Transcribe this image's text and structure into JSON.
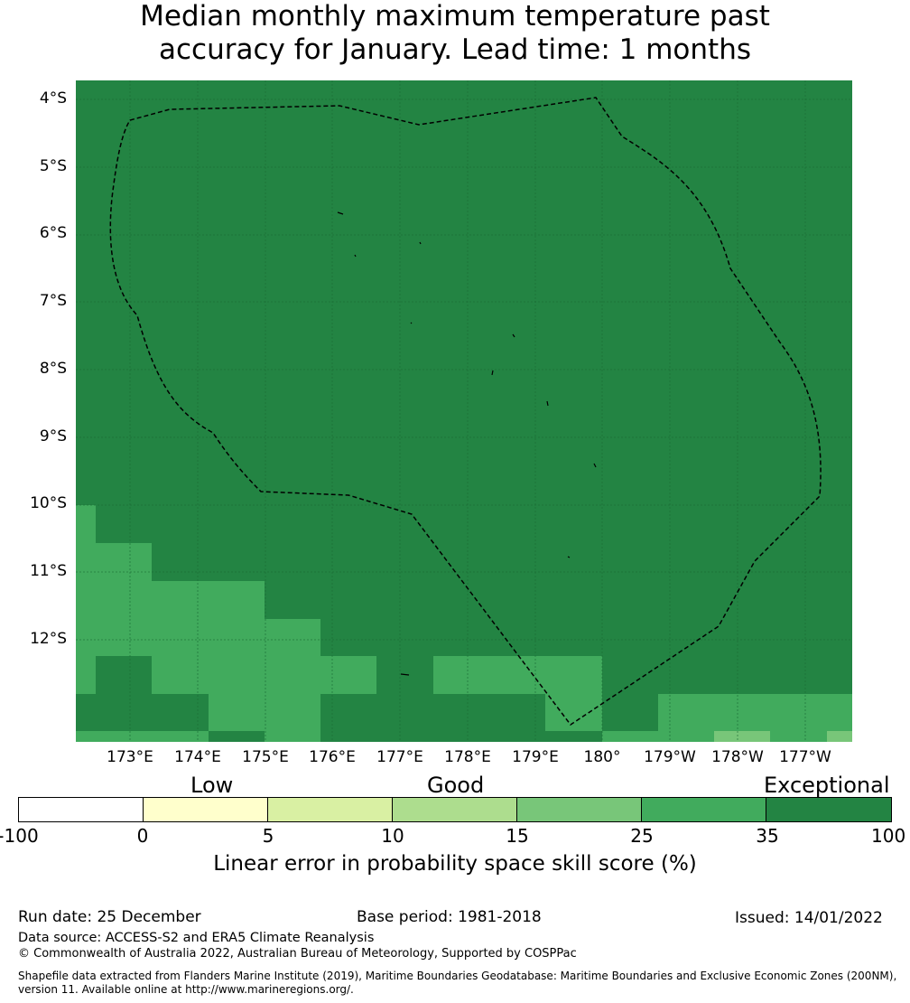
{
  "title": {
    "line1": "Median monthly maximum temperature past",
    "line2": "accuracy for January. Lead time: 1 months"
  },
  "map": {
    "lat_labels": [
      "4°S",
      "5°S",
      "6°S",
      "7°S",
      "8°S",
      "9°S",
      "10°S",
      "11°S",
      "12°S"
    ],
    "lon_labels": [
      "173°E",
      "174°E",
      "175°E",
      "176°E",
      "177°E",
      "178°E",
      "179°E",
      "180°",
      "179°W",
      "178°W",
      "177°W"
    ],
    "colors": {
      "exceptional": "#238443",
      "good_25_35": "#41ab5d",
      "good_15_25": "#78c679",
      "eez_line": "#000000"
    },
    "boundary": "dashed EEZ outline",
    "grid": true
  },
  "legend": {
    "categories": [
      "Low",
      "Good",
      "Exceptional"
    ],
    "ticks": [
      "-100",
      "0",
      "5",
      "10",
      "15",
      "25",
      "35",
      "100"
    ],
    "colors": [
      "#ffffff",
      "#ffffcc",
      "#d9f0a3",
      "#addd8e",
      "#78c679",
      "#41ab5d",
      "#238443"
    ],
    "label": "Linear error in probability space skill score (%)"
  },
  "footer": {
    "run_date": "Run date: 25 December",
    "base_period": "Base period: 1981-2018",
    "issued": "Issued: 14/01/2022",
    "data_source": "Data source: ACCESS-S2 and ERA5 Climate Reanalysis",
    "copyright": "© Commonwealth of Australia 2022, Australian Bureau of Meteorology, Supported by COSPPac",
    "shapefile_line1": "Shapefile data extracted from Flanders Marine Institute (2019), Maritime Boundaries Geodatabase: Maritime Boundaries and Exclusive Economic Zones (200NM),",
    "shapefile_line2": "version 11. Available online at http://www.marineregions.org/."
  }
}
